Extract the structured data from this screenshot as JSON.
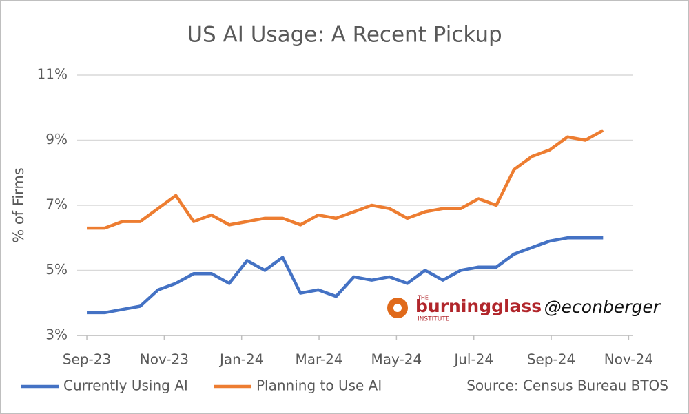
{
  "chart_data": {
    "type": "line",
    "title": "US AI Usage: A Recent Pickup",
    "y_label": "% of Firms",
    "x": [
      0,
      0.46,
      0.92,
      1.38,
      1.84,
      2.3,
      2.76,
      3.22,
      3.68,
      4.14,
      4.6,
      5.06,
      5.52,
      5.98,
      6.44,
      6.9,
      7.36,
      7.82,
      8.28,
      8.74,
      9.2,
      9.66,
      10.12,
      10.58,
      11.04,
      11.5,
      11.96,
      12.42,
      12.88,
      13.34
    ],
    "series": [
      {
        "name": "Currently Using AI",
        "color": "#4472c4",
        "values": [
          3.7,
          3.7,
          3.8,
          3.9,
          4.4,
          4.6,
          4.9,
          4.9,
          4.6,
          5.3,
          5.0,
          5.4,
          4.3,
          4.4,
          4.2,
          4.8,
          4.7,
          4.8,
          4.6,
          5.0,
          4.7,
          5.0,
          5.1,
          5.1,
          5.5,
          5.7,
          5.9,
          6.0,
          6.0,
          6.0
        ]
      },
      {
        "name": "Planning to Use AI",
        "color": "#ed7d31",
        "values": [
          6.3,
          6.3,
          6.5,
          6.5,
          6.9,
          7.3,
          6.5,
          6.7,
          6.4,
          6.5,
          6.6,
          6.6,
          6.4,
          6.7,
          6.6,
          6.8,
          7.0,
          6.9,
          6.6,
          6.8,
          6.9,
          6.9,
          7.2,
          7.0,
          8.1,
          8.5,
          8.7,
          9.1,
          9.0,
          9.3
        ]
      }
    ],
    "xlim": [
      -0.25,
      14.1
    ],
    "xticks": [
      {
        "value": 0,
        "label": "Sep-23"
      },
      {
        "value": 2,
        "label": "Nov-23"
      },
      {
        "value": 4,
        "label": "Jan-24"
      },
      {
        "value": 6,
        "label": "Mar-24"
      },
      {
        "value": 8,
        "label": "May-24"
      },
      {
        "value": 10,
        "label": "Jul-24"
      },
      {
        "value": 12,
        "label": "Sep-24"
      },
      {
        "value": 14,
        "label": "Nov-24"
      }
    ],
    "ylim": [
      3,
      11
    ],
    "yticks": [
      {
        "value": 3,
        "label": "3%"
      },
      {
        "value": 5,
        "label": "5%"
      },
      {
        "value": 7,
        "label": "7%"
      },
      {
        "value": 9,
        "label": "9%"
      },
      {
        "value": 11,
        "label": "11%"
      }
    ],
    "grid": true,
    "legend": "bottom",
    "source": "Source: Census Bureau BTOS",
    "logo": {
      "small": "THE",
      "name": "burningglass",
      "sub": "INSTITUTE"
    },
    "handle": "@econberger"
  }
}
